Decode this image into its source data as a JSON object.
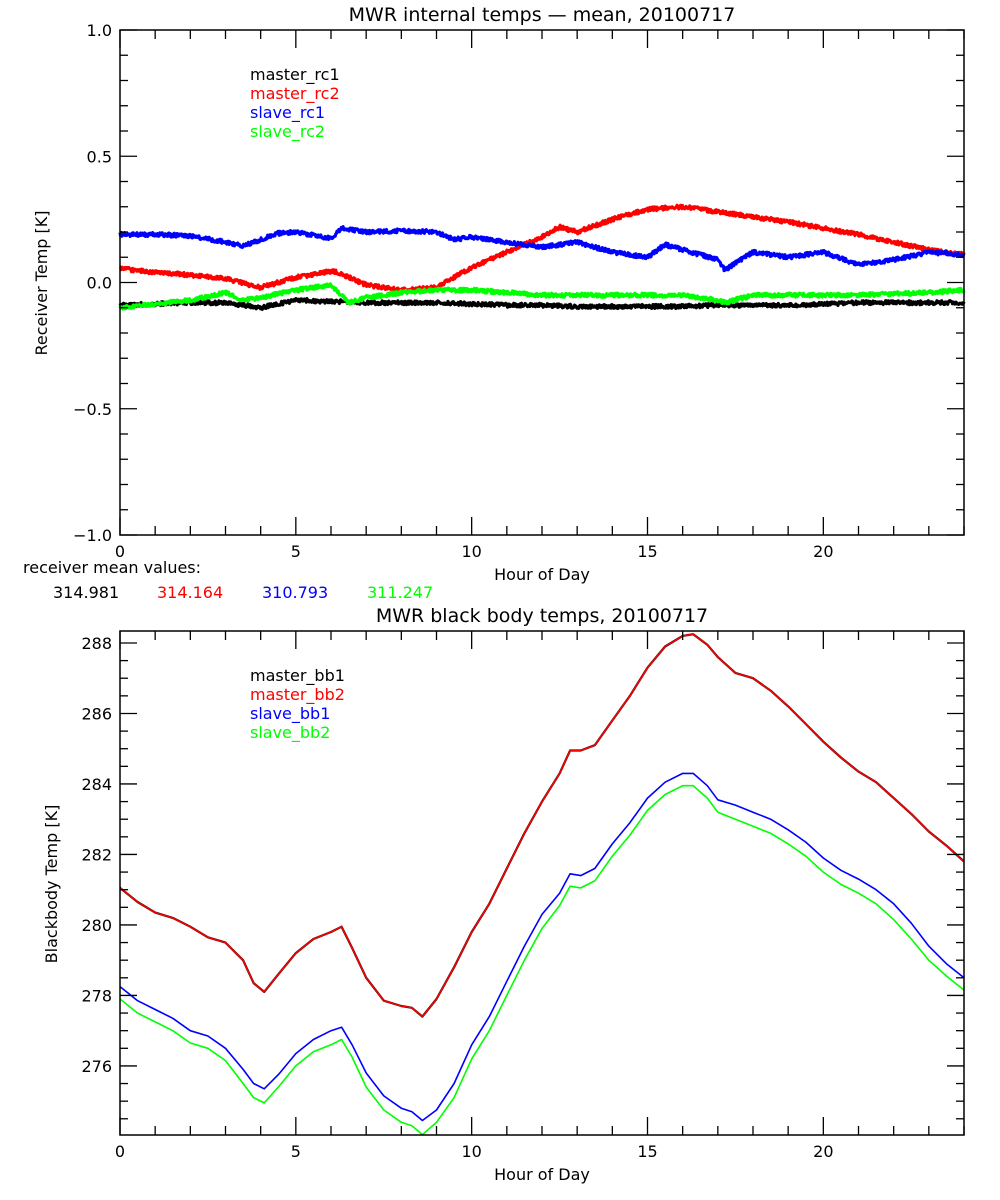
{
  "chart_data": [
    {
      "type": "line",
      "title": "MWR internal temps — mean, 20100717",
      "xlabel": "Hour of Day",
      "ylabel": "Receiver Temp [K]",
      "xlim": [
        0,
        24
      ],
      "ylim": [
        -1.0,
        1.0
      ],
      "xticks": [
        0,
        5,
        10,
        15,
        20
      ],
      "xtick_labels": [
        "0",
        "5",
        "10",
        "15",
        "20"
      ],
      "yticks": [
        -1.0,
        -0.5,
        0.0,
        0.5,
        1.0
      ],
      "ytick_labels": [
        "−1.0",
        "−0.5",
        "0.0",
        "0.5",
        "1.0"
      ],
      "grid": false,
      "legend_position": "top-left",
      "noise": true,
      "series": [
        {
          "name": "master_rc1",
          "color": "#000000",
          "x": [
            0,
            1,
            2,
            3,
            3.5,
            4,
            4.5,
            5,
            6,
            7,
            8,
            9,
            10,
            11,
            12,
            13,
            14,
            15,
            16,
            17,
            18,
            19,
            20,
            21,
            22,
            23,
            24
          ],
          "y": [
            -0.09,
            -0.085,
            -0.08,
            -0.08,
            -0.09,
            -0.1,
            -0.085,
            -0.07,
            -0.075,
            -0.08,
            -0.08,
            -0.08,
            -0.085,
            -0.09,
            -0.09,
            -0.095,
            -0.095,
            -0.095,
            -0.095,
            -0.09,
            -0.09,
            -0.09,
            -0.085,
            -0.08,
            -0.08,
            -0.08,
            -0.08
          ]
        },
        {
          "name": "master_rc2",
          "color": "#ff0000",
          "x": [
            0,
            1,
            2,
            3,
            4,
            5,
            6,
            6.2,
            7,
            8,
            9,
            10,
            11,
            12,
            12.5,
            13,
            14,
            15,
            16,
            17,
            18,
            19,
            20,
            21,
            22,
            23,
            24
          ],
          "y": [
            0.055,
            0.04,
            0.03,
            0.015,
            -0.02,
            0.02,
            0.045,
            0.04,
            -0.01,
            -0.03,
            -0.02,
            0.06,
            0.12,
            0.18,
            0.22,
            0.2,
            0.25,
            0.29,
            0.3,
            0.28,
            0.26,
            0.24,
            0.215,
            0.19,
            0.16,
            0.13,
            0.11
          ]
        },
        {
          "name": "slave_rc1",
          "color": "#0000ff",
          "x": [
            0,
            1,
            2,
            3,
            3.5,
            4,
            4.5,
            5,
            6,
            6.3,
            7,
            8,
            9,
            9.5,
            10,
            11,
            12,
            13,
            14,
            15,
            15.5,
            16,
            17,
            17.2,
            18,
            19,
            20,
            21,
            22,
            23,
            24
          ],
          "y": [
            0.19,
            0.19,
            0.185,
            0.16,
            0.145,
            0.17,
            0.195,
            0.2,
            0.175,
            0.215,
            0.2,
            0.205,
            0.2,
            0.17,
            0.18,
            0.16,
            0.14,
            0.16,
            0.12,
            0.1,
            0.15,
            0.13,
            0.09,
            0.05,
            0.12,
            0.1,
            0.12,
            0.07,
            0.09,
            0.12,
            0.11
          ]
        },
        {
          "name": "slave_rc2",
          "color": "#00ff00",
          "x": [
            0,
            1,
            2,
            3,
            3.5,
            4,
            5,
            6,
            6.5,
            7,
            8,
            9,
            10,
            11,
            12,
            13,
            14,
            15,
            16,
            17,
            17.2,
            18,
            19,
            20,
            21,
            22,
            23,
            24
          ],
          "y": [
            -0.1,
            -0.085,
            -0.07,
            -0.04,
            -0.07,
            -0.06,
            -0.03,
            -0.01,
            -0.08,
            -0.06,
            -0.04,
            -0.03,
            -0.03,
            -0.04,
            -0.05,
            -0.05,
            -0.05,
            -0.05,
            -0.05,
            -0.07,
            -0.08,
            -0.05,
            -0.05,
            -0.05,
            -0.05,
            -0.045,
            -0.04,
            -0.03
          ]
        }
      ],
      "annotation": {
        "label": "receiver mean values:",
        "values": [
          {
            "text": "314.981",
            "color": "#000000"
          },
          {
            "text": "314.164",
            "color": "#ff0000"
          },
          {
            "text": "310.793",
            "color": "#0000ff"
          },
          {
            "text": "311.247",
            "color": "#00ff00"
          }
        ]
      }
    },
    {
      "type": "line",
      "title": "MWR black body temps, 20100717",
      "xlabel": "Hour of Day",
      "ylabel": "Blackbody Temp [K]",
      "xlim": [
        0,
        24
      ],
      "ylim": [
        274.04,
        288.34
      ],
      "xticks": [
        0,
        5,
        10,
        15,
        20
      ],
      "xtick_labels": [
        "0",
        "5",
        "10",
        "15",
        "20"
      ],
      "yticks": [
        276,
        278,
        280,
        282,
        284,
        286,
        288
      ],
      "ytick_labels": [
        "276",
        "278",
        "280",
        "282",
        "284",
        "286",
        "288"
      ],
      "grid": false,
      "legend_position": "top-left",
      "noise": false,
      "series": [
        {
          "name": "master_bb1",
          "color": "#000000",
          "x": [
            0,
            0.5,
            1,
            1.5,
            2,
            2.5,
            3,
            3.5,
            3.8,
            4.1,
            4.5,
            5,
            5.5,
            6,
            6.3,
            6.6,
            7,
            7.5,
            8,
            8.3,
            8.6,
            9,
            9.5,
            10,
            10.5,
            11,
            11.5,
            12,
            12.5,
            12.8,
            13.1,
            13.5,
            14,
            14.5,
            15,
            15.5,
            16,
            16.3,
            16.7,
            17,
            17.5,
            18,
            18.5,
            19,
            19.5,
            20,
            20.5,
            21,
            21.5,
            22,
            22.5,
            23,
            23.5,
            24
          ],
          "y": [
            281.05,
            280.65,
            280.35,
            280.2,
            279.95,
            279.65,
            279.5,
            279.0,
            278.35,
            278.1,
            278.6,
            279.2,
            279.6,
            279.8,
            279.95,
            279.35,
            278.5,
            277.85,
            277.7,
            277.65,
            277.4,
            277.9,
            278.8,
            279.8,
            280.6,
            281.6,
            282.6,
            283.5,
            284.3,
            284.95,
            284.95,
            285.1,
            285.8,
            286.5,
            287.3,
            287.9,
            288.2,
            288.25,
            287.95,
            287.6,
            287.15,
            287.0,
            286.65,
            286.2,
            285.7,
            285.2,
            284.75,
            284.35,
            284.05,
            283.6,
            283.15,
            282.65,
            282.25,
            281.8
          ]
        },
        {
          "name": "master_bb2",
          "color": "#ff0000",
          "x": [
            0,
            0.5,
            1,
            1.5,
            2,
            2.5,
            3,
            3.5,
            3.8,
            4.1,
            4.5,
            5,
            5.5,
            6,
            6.3,
            6.6,
            7,
            7.5,
            8,
            8.3,
            8.6,
            9,
            9.5,
            10,
            10.5,
            11,
            11.5,
            12,
            12.5,
            12.8,
            13.1,
            13.5,
            14,
            14.5,
            15,
            15.5,
            16,
            16.3,
            16.7,
            17,
            17.5,
            18,
            18.5,
            19,
            19.5,
            20,
            20.5,
            21,
            21.5,
            22,
            22.5,
            23,
            23.5,
            24
          ],
          "y": [
            281.05,
            280.65,
            280.35,
            280.2,
            279.95,
            279.65,
            279.5,
            279.0,
            278.35,
            278.1,
            278.6,
            279.2,
            279.6,
            279.8,
            279.95,
            279.35,
            278.5,
            277.85,
            277.7,
            277.65,
            277.4,
            277.9,
            278.8,
            279.8,
            280.6,
            281.6,
            282.6,
            283.5,
            284.3,
            284.95,
            284.95,
            285.1,
            285.8,
            286.5,
            287.3,
            287.9,
            288.2,
            288.25,
            287.95,
            287.6,
            287.15,
            287.0,
            286.65,
            286.2,
            285.7,
            285.2,
            284.75,
            284.35,
            284.05,
            283.6,
            283.15,
            282.65,
            282.25,
            281.8
          ]
        },
        {
          "name": "slave_bb1",
          "color": "#0000ff",
          "x": [
            0,
            0.5,
            1,
            1.5,
            2,
            2.5,
            3,
            3.5,
            3.8,
            4.1,
            4.5,
            5,
            5.5,
            6,
            6.3,
            6.6,
            7,
            7.5,
            8,
            8.3,
            8.6,
            9,
            9.5,
            10,
            10.5,
            11,
            11.5,
            12,
            12.5,
            12.8,
            13.1,
            13.5,
            14,
            14.5,
            15,
            15.5,
            16,
            16.3,
            16.7,
            17,
            17.5,
            18,
            18.5,
            19,
            19.5,
            20,
            20.5,
            21,
            21.5,
            22,
            22.5,
            23,
            23.5,
            24
          ],
          "y": [
            278.25,
            277.85,
            277.6,
            277.35,
            277.0,
            276.85,
            276.5,
            275.9,
            275.5,
            275.35,
            275.75,
            276.35,
            276.75,
            277.0,
            277.1,
            276.6,
            275.8,
            275.15,
            274.8,
            274.7,
            274.45,
            274.75,
            275.5,
            276.6,
            277.4,
            278.4,
            279.4,
            280.3,
            280.9,
            281.45,
            281.4,
            281.6,
            282.3,
            282.9,
            283.6,
            284.05,
            284.3,
            284.3,
            283.95,
            283.55,
            283.4,
            283.2,
            283.0,
            282.7,
            282.35,
            281.9,
            281.55,
            281.3,
            281.0,
            280.6,
            280.05,
            279.4,
            278.9,
            278.5
          ]
        },
        {
          "name": "slave_bb2",
          "color": "#00ff00",
          "x": [
            0,
            0.5,
            1,
            1.5,
            2,
            2.5,
            3,
            3.5,
            3.8,
            4.1,
            4.5,
            5,
            5.5,
            6,
            6.3,
            6.6,
            7,
            7.5,
            8,
            8.3,
            8.6,
            9,
            9.5,
            10,
            10.5,
            11,
            11.5,
            12,
            12.5,
            12.8,
            13.1,
            13.5,
            14,
            14.5,
            15,
            15.5,
            16,
            16.3,
            16.7,
            17,
            17.5,
            18,
            18.5,
            19,
            19.5,
            20,
            20.5,
            21,
            21.5,
            22,
            22.5,
            23,
            23.5,
            24
          ],
          "y": [
            277.9,
            277.5,
            277.25,
            277.0,
            276.65,
            276.5,
            276.15,
            275.5,
            275.1,
            274.95,
            275.4,
            276.0,
            276.4,
            276.6,
            276.75,
            276.25,
            275.4,
            274.75,
            274.4,
            274.3,
            274.05,
            274.4,
            275.1,
            276.2,
            277.0,
            278.0,
            279.0,
            279.9,
            280.55,
            281.1,
            281.05,
            281.25,
            281.95,
            282.55,
            283.25,
            283.7,
            283.95,
            283.95,
            283.6,
            283.2,
            283.0,
            282.8,
            282.6,
            282.3,
            281.95,
            281.5,
            281.15,
            280.9,
            280.6,
            280.15,
            279.6,
            279.0,
            278.55,
            278.15
          ]
        }
      ]
    }
  ]
}
